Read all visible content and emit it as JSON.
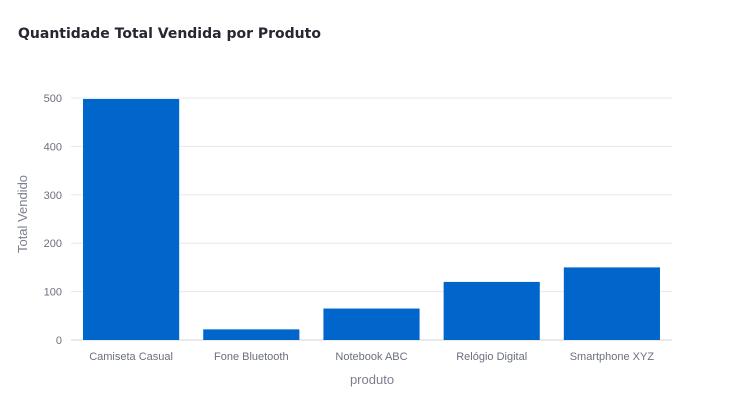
{
  "colors": {
    "bar": "#0066cc",
    "grid": "#e8e8ec",
    "baseline": "#d6d6dc",
    "text": "#6b6f80"
  },
  "chart_data": {
    "type": "bar",
    "title": "Quantidade Total Vendida por Produto",
    "xlabel": "produto",
    "ylabel": "Total Vendido",
    "categories": [
      "Camiseta Casual",
      "Fone Bluetooth",
      "Notebook ABC",
      "Relógio Digital",
      "Smartphone XYZ"
    ],
    "values": [
      498,
      22,
      65,
      120,
      150
    ],
    "ylim": [
      0,
      500
    ],
    "yticks": [
      0,
      100,
      200,
      300,
      400,
      500
    ],
    "ytick_labels": [
      "0",
      "100",
      "200",
      "300",
      "400",
      "500"
    ],
    "grid": true,
    "legend": false
  }
}
